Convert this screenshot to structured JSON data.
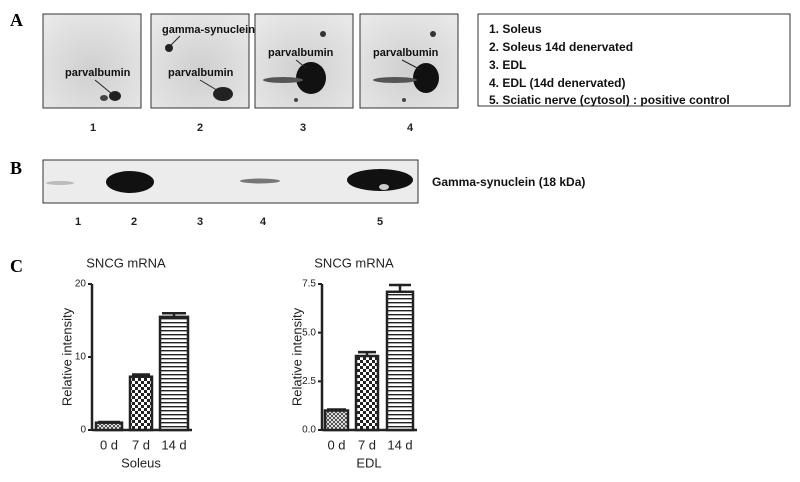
{
  "panel_labels": [
    "A",
    "B",
    "C"
  ],
  "panel_a": {
    "gels": [
      {
        "labels": [
          "parvalbumin"
        ]
      },
      {
        "labels": [
          "gamma-synuclein",
          "parvalbumin"
        ]
      },
      {
        "labels": [
          "parvalbumin"
        ]
      },
      {
        "labels": [
          "parvalbumin"
        ]
      }
    ],
    "lanes": [
      "1",
      "2",
      "3",
      "4"
    ],
    "legend": [
      "1. Soleus",
      "2. Soleus 14d denervated",
      "3. EDL",
      "4. EDL (14d denervated)",
      "5. Sciatic nerve (cytosol) : positive control"
    ]
  },
  "panel_b": {
    "band_label": "Gamma-synuclein (18 kDa)",
    "lanes": [
      "1",
      "2",
      "3",
      "4",
      "5"
    ]
  },
  "chart_data": [
    {
      "type": "bar",
      "title": "SNCG mRNA",
      "y_label": "Relative intensity",
      "x_label": "Soleus",
      "categories": [
        "0 d",
        "7 d",
        "14 d"
      ],
      "values": [
        1,
        7.3,
        15.5
      ],
      "errors": [
        0.1,
        0.3,
        0.5
      ],
      "ylim": [
        0,
        20
      ],
      "yticks": [
        0,
        10,
        20
      ]
    },
    {
      "type": "bar",
      "title": "SNCG mRNA",
      "y_label": "Relative intensity",
      "x_label": "EDL",
      "categories": [
        "0 d",
        "7 d",
        "14 d"
      ],
      "values": [
        1,
        3.8,
        7.1
      ],
      "errors": [
        0.05,
        0.2,
        0.35
      ],
      "ylim": [
        0,
        7.5
      ],
      "yticks": [
        {
          "value": 0,
          "label": "0.0"
        },
        2.5,
        {
          "value": 5,
          "label": "5.0"
        },
        7.5
      ]
    }
  ]
}
